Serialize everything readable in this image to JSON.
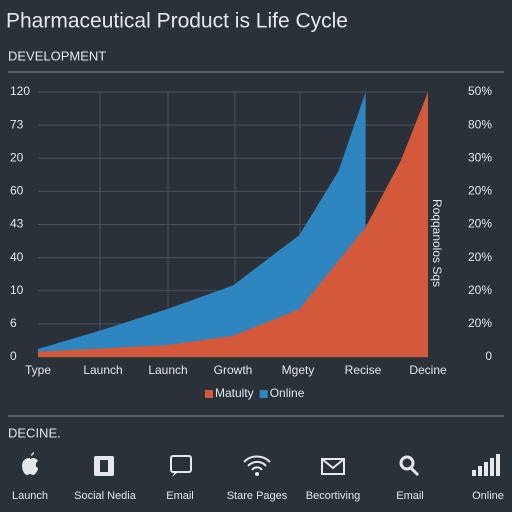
{
  "header": {
    "title": "Pharmaceutical Product is Life Cycle",
    "subtitle": "DEVELOPMENT"
  },
  "chart_data": {
    "type": "area",
    "y_labels": [
      "120",
      "73",
      "20",
      "60",
      "43",
      "40",
      "10",
      "6",
      "0"
    ],
    "y2_labels": [
      "50%",
      "80%",
      "30%",
      "20%",
      "20%",
      "20%",
      "20%",
      "20%",
      "0"
    ],
    "x_labels": [
      "Type",
      "Launch",
      "Launch",
      "Growth",
      "Mgety",
      "Recise",
      "Decine"
    ],
    "side_label": "Roqqanolos Sqs",
    "xlim": [
      0,
      100
    ],
    "ylim": [
      0,
      100
    ],
    "series": [
      {
        "name": "Online",
        "color": "#2e86c1",
        "x": [
          0,
          16,
          33,
          50,
          67,
          77,
          84
        ],
        "values": [
          3,
          10,
          18,
          27,
          46,
          70,
          100
        ]
      },
      {
        "name": "Matulty",
        "color": "#d4583a",
        "x": [
          0,
          33,
          50,
          67,
          84,
          93,
          100
        ],
        "values": [
          2,
          4.5,
          8,
          18,
          49,
          74,
          100
        ]
      }
    ],
    "legend_order": [
      1,
      0
    ]
  },
  "footer": {
    "section": "DECINE.",
    "items": [
      "Launch",
      "Social Nedia",
      "Email",
      "Stare Pages",
      "Becortiving",
      "Email",
      "Online"
    ]
  }
}
